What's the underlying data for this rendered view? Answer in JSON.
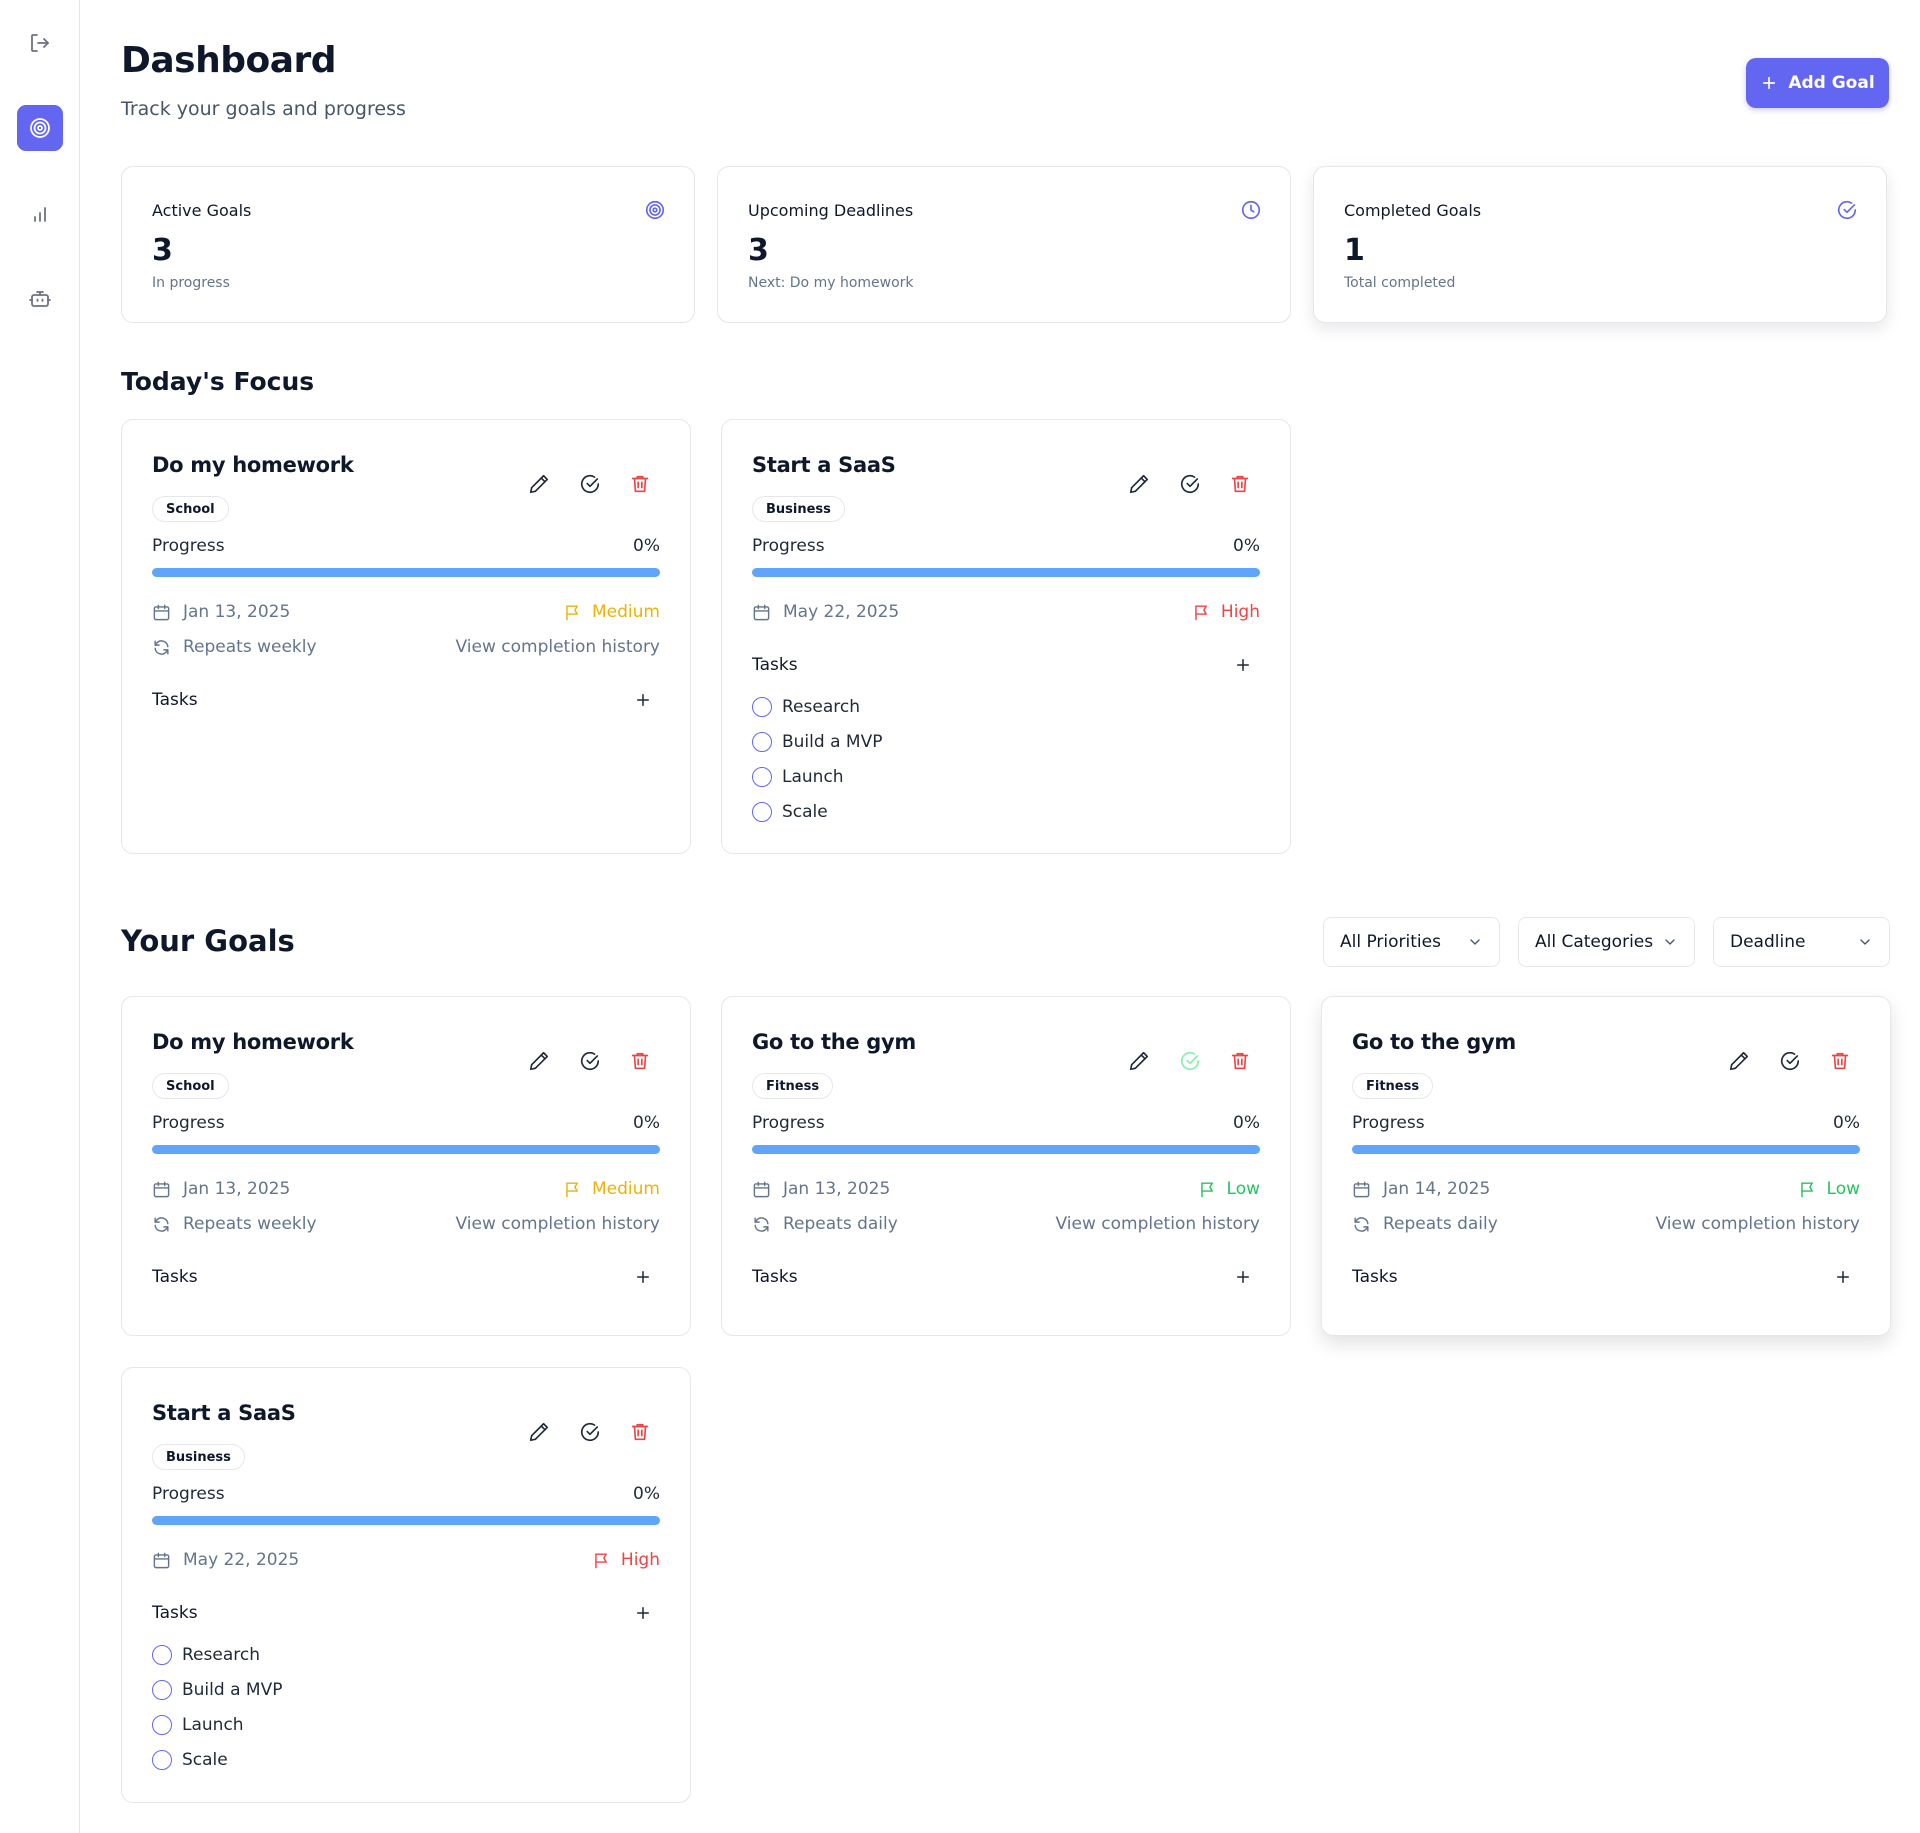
{
  "page": {
    "title": "Dashboard",
    "subtitle": "Track your goals and progress",
    "add_goal_label": "Add Goal"
  },
  "sidebar": {
    "items": [
      {
        "icon": "logout-icon"
      },
      {
        "icon": "target-icon",
        "active": true
      },
      {
        "icon": "bar-chart-icon"
      },
      {
        "icon": "bot-icon"
      }
    ]
  },
  "stats": [
    {
      "label": "Active Goals",
      "value": "3",
      "sub": "In progress",
      "icon": "target-icon"
    },
    {
      "label": "Upcoming Deadlines",
      "value": "3",
      "sub": "Next: Do my homework",
      "icon": "clock-icon"
    },
    {
      "label": "Completed Goals",
      "value": "1",
      "sub": "Total completed",
      "icon": "check-circle-icon"
    }
  ],
  "today": {
    "title": "Today's Focus",
    "cards": [
      {
        "title": "Do my homework",
        "tag": "School",
        "progress_label": "Progress",
        "progress": "0%",
        "date": "Jan 13, 2025",
        "priority": "Medium",
        "repeat": "Repeats weekly",
        "history": "View completion history",
        "tasks_label": "Tasks",
        "tasks": []
      },
      {
        "title": "Start a SaaS",
        "tag": "Business",
        "progress_label": "Progress",
        "progress": "0%",
        "date": "May 22, 2025",
        "priority": "High",
        "tasks_label": "Tasks",
        "tasks": [
          "Research",
          "Build a MVP",
          "Launch",
          "Scale"
        ]
      }
    ]
  },
  "goals": {
    "title": "Your Goals",
    "filters": [
      "All Priorities",
      "All Categories",
      "Deadline"
    ],
    "cards": [
      {
        "title": "Do my homework",
        "tag": "School",
        "progress_label": "Progress",
        "progress": "0%",
        "date": "Jan 13, 2025",
        "priority": "Medium",
        "repeat": "Repeats weekly",
        "history": "View completion history",
        "tasks_label": "Tasks",
        "tasks": []
      },
      {
        "title": "Go to the gym",
        "tag": "Fitness",
        "progress_label": "Progress",
        "progress": "0%",
        "date": "Jan 13, 2025",
        "priority": "Low",
        "repeat": "Repeats daily",
        "history": "View completion history",
        "tasks_label": "Tasks",
        "tasks": []
      },
      {
        "title": "Go to the gym",
        "tag": "Fitness",
        "progress_label": "Progress",
        "progress": "0%",
        "date": "Jan 14, 2025",
        "priority": "Low",
        "repeat": "Repeats daily",
        "history": "View completion history",
        "tasks_label": "Tasks",
        "tasks": []
      },
      {
        "title": "Start a SaaS",
        "tag": "Business",
        "progress_label": "Progress",
        "progress": "0%",
        "date": "May 22, 2025",
        "priority": "High",
        "tasks_label": "Tasks",
        "tasks": [
          "Research",
          "Build a MVP",
          "Launch",
          "Scale"
        ]
      }
    ]
  },
  "colors": {
    "accent": "#6366f1",
    "progress_track": "#60a5fa",
    "priority_medium": "#eab308",
    "priority_high": "#ef4444",
    "priority_low": "#22c55e"
  }
}
